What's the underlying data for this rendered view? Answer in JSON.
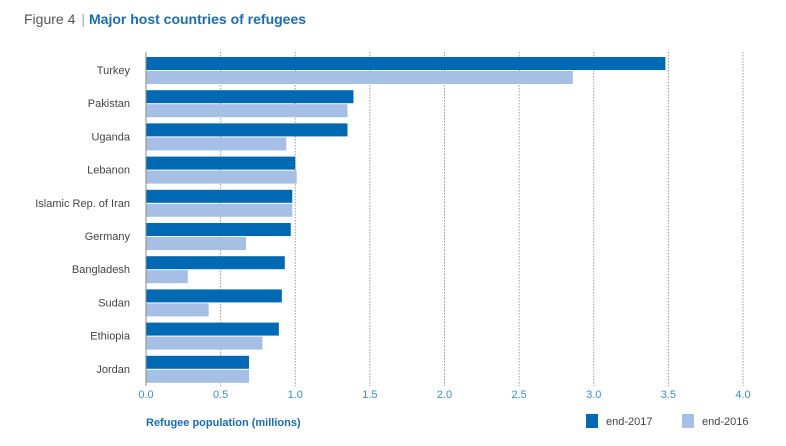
{
  "header": {
    "figure_label": "Figure 4",
    "title": "Major host countries of refugees"
  },
  "chart_data": {
    "type": "bar",
    "orientation": "horizontal",
    "title": "Major host countries of refugees",
    "xlabel": "Refugee population (millions)",
    "ylabel": "",
    "xlim": [
      0,
      4.0
    ],
    "xticks": [
      "0.0",
      "0.5",
      "1.0",
      "1.5",
      "2.0",
      "2.5",
      "3.0",
      "3.5",
      "4.0"
    ],
    "grid": true,
    "legend_position": "bottom-right",
    "categories": [
      "Turkey",
      "Pakistan",
      "Uganda",
      "Lebanon",
      "Islamic Rep. of Iran",
      "Germany",
      "Bangladesh",
      "Sudan",
      "Ethiopia",
      "Jordan"
    ],
    "series": [
      {
        "name": "end-2017",
        "color": "#0069b4",
        "values": [
          3.48,
          1.39,
          1.35,
          1.0,
          0.98,
          0.97,
          0.93,
          0.91,
          0.89,
          0.69
        ]
      },
      {
        "name": "end-2016",
        "color": "#a6bfe4",
        "values": [
          2.86,
          1.35,
          0.94,
          1.01,
          0.98,
          0.67,
          0.28,
          0.42,
          0.78,
          0.69
        ]
      }
    ]
  }
}
